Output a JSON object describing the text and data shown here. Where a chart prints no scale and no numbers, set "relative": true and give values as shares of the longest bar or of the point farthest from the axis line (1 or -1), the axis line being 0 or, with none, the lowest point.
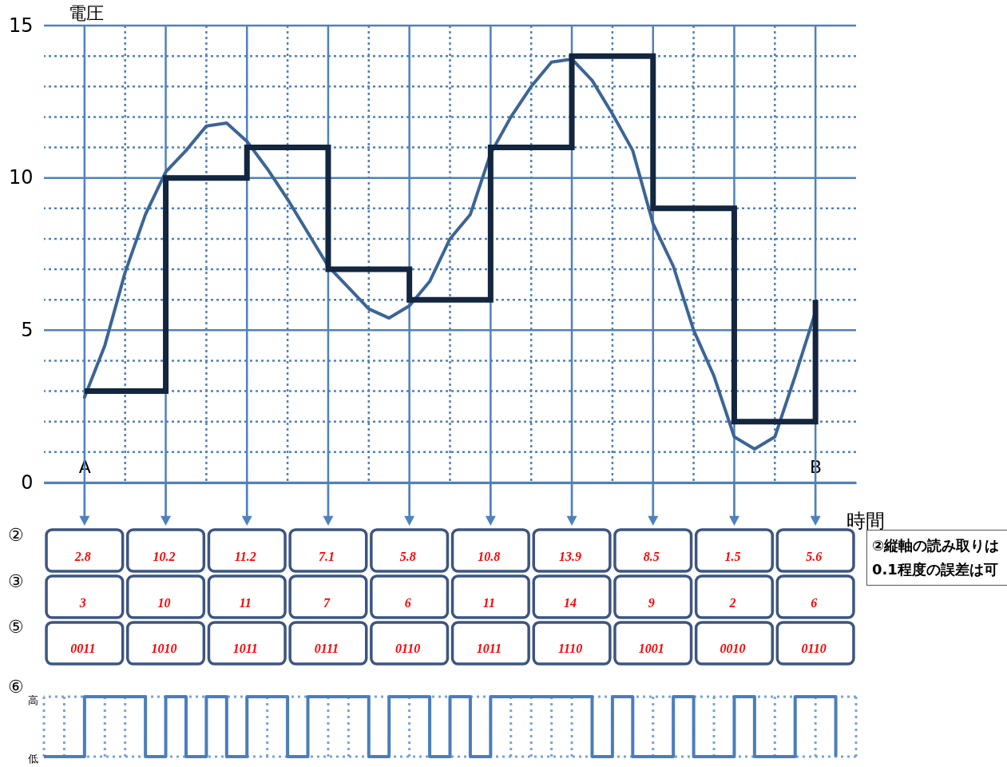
{
  "chart_data": [
    {
      "type": "line",
      "xlabel": "時間",
      "ylabel": "電圧",
      "ylim": [
        0,
        15
      ],
      "grid": true,
      "categories": [
        "A",
        null,
        null,
        null,
        null,
        null,
        null,
        null,
        null,
        null,
        null,
        null,
        null,
        null,
        null,
        null,
        null,
        null,
        null,
        null,
        null,
        null,
        null,
        null,
        null,
        null,
        null,
        null,
        null,
        null,
        null,
        null,
        null,
        null,
        null,
        null,
        "B"
      ],
      "yticks": [
        0,
        {
          "value": 1,
          "label": null
        },
        {
          "value": 2,
          "label": null
        },
        {
          "value": 3,
          "label": null
        },
        {
          "value": 4,
          "label": null
        },
        5,
        {
          "value": 6,
          "label": null
        },
        {
          "value": 7,
          "label": null
        },
        {
          "value": 8,
          "label": null
        },
        {
          "value": 9,
          "label": null
        },
        10,
        {
          "value": 11,
          "label": null
        },
        {
          "value": 12,
          "label": null
        },
        {
          "value": 13,
          "label": null
        },
        {
          "value": 14,
          "label": null
        },
        15
      ],
      "series": [
        {
          "color": "#3c6596",
          "values": [
            2.8,
            4.5,
            6.9,
            8.8,
            10.2,
            10.9,
            11.7,
            11.8,
            11.2,
            10.3,
            9.3,
            8.2,
            7.1,
            6.4,
            5.7,
            5.4,
            5.8,
            6.6,
            8,
            8.8,
            10.8,
            12,
            13,
            13.8,
            13.9,
            13.2,
            12.1,
            10.9,
            8.5,
            7.1,
            5,
            3.5,
            1.5,
            1.1,
            1.5,
            3.5,
            5.6
          ],
          "value_labels": [
            "2.8",
            null,
            null,
            null,
            "10.2",
            null,
            null,
            null,
            "11.2",
            null,
            null,
            null,
            "7.1",
            null,
            null,
            null,
            "5.8",
            null,
            null,
            null,
            "10.8",
            null,
            null,
            null,
            "13.9",
            null,
            null,
            null,
            "8.5",
            null,
            null,
            null,
            "1.5",
            null,
            null,
            null,
            "5.6"
          ]
        },
        {
          "type": "step",
          "color": "#13263f",
          "values": [
            3,
            3,
            3,
            3,
            10,
            10,
            10,
            10,
            11,
            11,
            11,
            11,
            7,
            7,
            7,
            7,
            6,
            6,
            6,
            6,
            11,
            11,
            11,
            11,
            14,
            14,
            14,
            14,
            9,
            9,
            9,
            9,
            2,
            2,
            2,
            2,
            6
          ],
          "value_labels": [
            "3",
            null,
            null,
            null,
            "10",
            null,
            null,
            null,
            "11",
            null,
            null,
            null,
            "7",
            null,
            null,
            null,
            "6",
            null,
            null,
            null,
            "11",
            null,
            null,
            null,
            "14",
            null,
            null,
            null,
            "9",
            null,
            null,
            null,
            "2",
            null,
            null,
            null,
            "6"
          ]
        }
      ],
      "annotations": [
        "②",
        "③",
        "⑤",
        "0011",
        "1010",
        "1011",
        "0111",
        "0110",
        "1011",
        "1110",
        "1001",
        "0010",
        "0110",
        "②縦軸の読み取りは0.1程度の誤差は可"
      ]
    },
    {
      "type": "step",
      "color": "#4a7ebb",
      "grid": true,
      "relative": true,
      "categories": [
        null,
        null,
        null,
        null,
        null,
        null,
        null,
        null,
        null,
        null,
        null,
        null,
        null,
        null,
        null,
        null,
        null,
        null,
        null,
        null,
        null,
        null,
        null,
        null,
        null,
        null,
        null,
        null,
        null,
        null,
        null,
        null,
        null,
        null,
        null,
        null,
        null,
        null,
        null,
        null
      ],
      "values": [
        0,
        0,
        1,
        1,
        1,
        0,
        1,
        0,
        1,
        0,
        1,
        1,
        0,
        1,
        1,
        1,
        0,
        1,
        1,
        0,
        1,
        0,
        1,
        1,
        1,
        1,
        1,
        0,
        1,
        0,
        0,
        1,
        0,
        0,
        1,
        0,
        0,
        1,
        1,
        0
      ],
      "annotations": [
        "⑥",
        "高",
        "低"
      ]
    }
  ]
}
